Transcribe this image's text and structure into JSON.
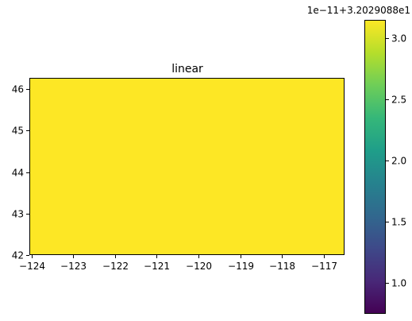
{
  "chart_data": {
    "type": "heatmap",
    "title": "linear",
    "xlabel": "",
    "ylabel": "",
    "xlim": [
      -124.05,
      -116.5
    ],
    "ylim": [
      42.0,
      46.27
    ],
    "x_ticks": [
      -124,
      -123,
      -122,
      -121,
      -120,
      -119,
      -118,
      -117
    ],
    "x_tick_labels": [
      "−124",
      "−123",
      "−122",
      "−121",
      "−120",
      "−119",
      "−118",
      "−117"
    ],
    "y_ticks": [
      42,
      43,
      44,
      45,
      46
    ],
    "y_tick_labels": [
      "42",
      "43",
      "44",
      "45",
      "46"
    ],
    "field_value": 3.12,
    "field_color": "#fde725",
    "colorbar": {
      "offset_label": "1e−11+3.2029088e1",
      "vmin": 0.75,
      "vmax": 3.15,
      "ticks": [
        1.0,
        1.5,
        2.0,
        2.5,
        3.0
      ],
      "tick_labels": [
        "1.0",
        "1.5",
        "2.0",
        "2.5",
        "3.0"
      ],
      "colormap": "viridis",
      "stops": [
        "#440154",
        "#482878",
        "#3e4989",
        "#31688e",
        "#26828e",
        "#1f9e89",
        "#35b779",
        "#6ece58",
        "#b5de2b",
        "#fde725"
      ]
    },
    "grid": false,
    "legend": "none"
  }
}
